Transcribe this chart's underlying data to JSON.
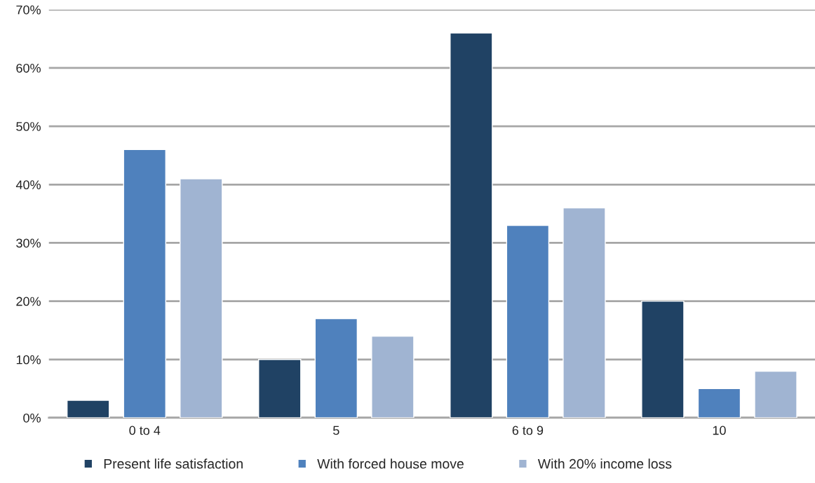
{
  "chart_data": {
    "type": "bar",
    "categories": [
      "0 to 4",
      "5",
      "6 to 9",
      "10"
    ],
    "series": [
      {
        "name": "Present life satisfaction",
        "color": "#204264",
        "values": [
          3,
          10,
          66,
          20
        ]
      },
      {
        "name": "With forced house move",
        "color": "#4f81bd",
        "values": [
          46,
          17,
          33,
          5
        ]
      },
      {
        "name": "With 20% income loss",
        "color": "#a0b4d2",
        "values": [
          41,
          14,
          36,
          8
        ]
      }
    ],
    "ylim": [
      0,
      70
    ],
    "yticks": [
      {
        "value": 0,
        "label": "0%"
      },
      {
        "value": 10,
        "label": "10%"
      },
      {
        "value": 20,
        "label": "20%"
      },
      {
        "value": 30,
        "label": "30%"
      },
      {
        "value": 40,
        "label": "40%"
      },
      {
        "value": 50,
        "label": "50%"
      },
      {
        "value": 60,
        "label": "60%"
      },
      {
        "value": 70,
        "label": "70%"
      }
    ],
    "grid": "y",
    "legend": "bottom"
  }
}
